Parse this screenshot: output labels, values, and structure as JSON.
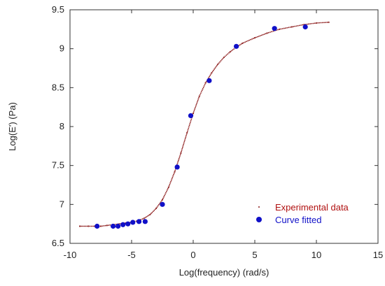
{
  "chart_data": {
    "type": "scatter",
    "title": "",
    "xlabel": "Log(frequency) (rad/s)",
    "ylabel": "Log(E') (Pa)",
    "xlim": [
      -10,
      15
    ],
    "ylim": [
      6.5,
      9.5
    ],
    "xticks": [
      -10,
      -5,
      0,
      5,
      10,
      15
    ],
    "yticks": [
      6.5,
      7,
      7.5,
      8,
      8.5,
      9,
      9.5
    ],
    "xtick_labels": [
      "-10",
      "-5",
      "0",
      "5",
      "10",
      "15"
    ],
    "ytick_labels": [
      "6.5",
      "7",
      "7.5",
      "8",
      "8.5",
      "9",
      "9.5"
    ],
    "grid": false,
    "legend_position": "bottom-right",
    "series": [
      {
        "name": "Experimental data",
        "kind": "dotted-line",
        "color": "#8b1a1a",
        "x": [
          -9.2,
          -8.5,
          -8.0,
          -7.5,
          -7.0,
          -6.5,
          -6.0,
          -5.5,
          -5.0,
          -4.5,
          -4.0,
          -3.5,
          -3.0,
          -2.5,
          -2.0,
          -1.5,
          -1.0,
          -0.5,
          0.0,
          0.5,
          1.0,
          1.5,
          2.0,
          2.5,
          3.0,
          3.5,
          4.0,
          5.0,
          6.0,
          7.0,
          8.0,
          9.0,
          10.0,
          11.0
        ],
        "y": [
          6.72,
          6.72,
          6.72,
          6.72,
          6.73,
          6.74,
          6.75,
          6.76,
          6.77,
          6.79,
          6.82,
          6.87,
          6.95,
          7.06,
          7.22,
          7.42,
          7.66,
          7.92,
          8.17,
          8.39,
          8.56,
          8.69,
          8.8,
          8.89,
          8.96,
          9.02,
          9.07,
          9.14,
          9.2,
          9.25,
          9.28,
          9.31,
          9.33,
          9.34
        ]
      },
      {
        "name": "Curve fitted",
        "kind": "markers",
        "color": "#1010c8",
        "x": [
          -7.8,
          -6.5,
          -6.1,
          -5.7,
          -5.3,
          -4.9,
          -4.4,
          -3.9,
          -2.5,
          -1.3,
          -0.2,
          1.3,
          3.5,
          6.6,
          9.1
        ],
        "y": [
          6.72,
          6.72,
          6.72,
          6.74,
          6.75,
          6.77,
          6.78,
          6.78,
          7.0,
          7.48,
          8.14,
          8.59,
          9.03,
          9.26,
          9.28
        ]
      }
    ]
  }
}
